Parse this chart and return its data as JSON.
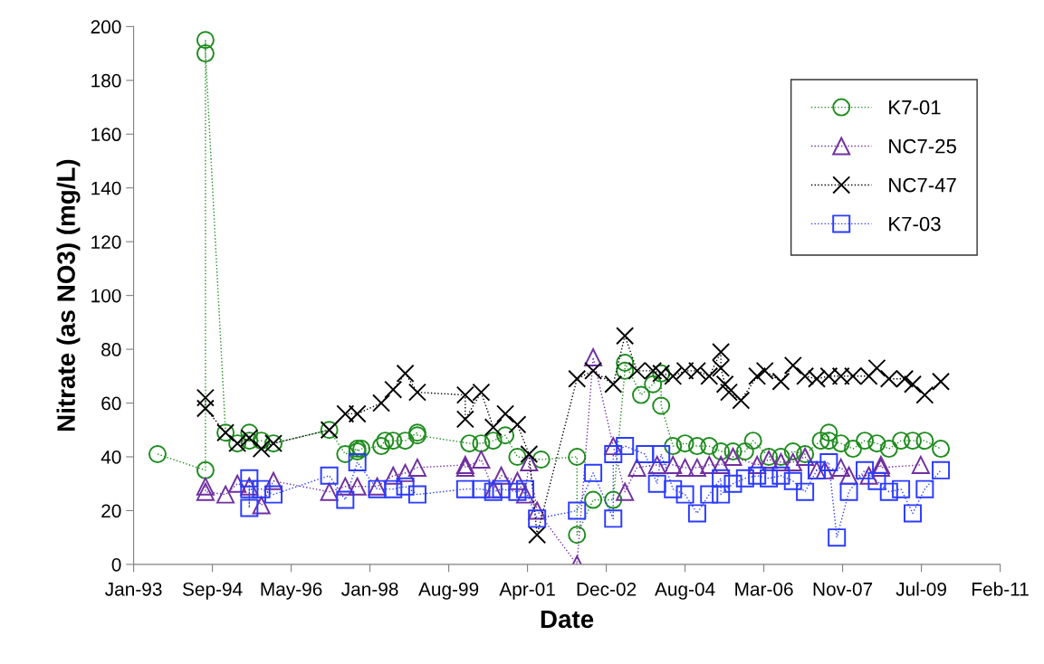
{
  "chart_data": {
    "type": "line",
    "xlabel": "Date",
    "ylabel": "Nitrate (as NO3) (mg/L)",
    "xlim": [
      "1993-01-31",
      "2011-02-26"
    ],
    "ylim": [
      0,
      200
    ],
    "yticks": [
      0,
      20,
      40,
      60,
      80,
      100,
      120,
      140,
      160,
      180,
      200
    ],
    "xticks": [
      {
        "value": "1993-01-31",
        "label": "Jan-93"
      },
      {
        "value": "1994-09-23",
        "label": "Sep-94"
      },
      {
        "value": "1996-05-15",
        "label": "May-96"
      },
      {
        "value": "1998-01-05",
        "label": "Jan-98"
      },
      {
        "value": "1999-08-28",
        "label": "Aug-99"
      },
      {
        "value": "2001-04-19",
        "label": "Apr-01"
      },
      {
        "value": "2002-12-10",
        "label": "Dec-02"
      },
      {
        "value": "2004-08-01",
        "label": "Aug-04"
      },
      {
        "value": "2006-03-24",
        "label": "Mar-06"
      },
      {
        "value": "2007-11-14",
        "label": "Nov-07"
      },
      {
        "value": "2009-07-06",
        "label": "Jul-09"
      },
      {
        "value": "2011-02-26",
        "label": "Feb-11"
      }
    ],
    "grid": false,
    "legend": "top right",
    "line_style": "dotted",
    "series": [
      {
        "name": "K7-01",
        "color": "#1e8c1e",
        "marker": "circle",
        "x": [
          "1993-08",
          "1994-08",
          "1994-08",
          "1994-08",
          "1995-01",
          "1995-04",
          "1995-07",
          "1995-07",
          "1995-10",
          "1996-01",
          "1997-03",
          "1997-07",
          "1997-10",
          "1997-10",
          "1997-11",
          "1998-04",
          "1998-05",
          "1998-07",
          "1998-10",
          "1999-01",
          "1999-01",
          "2000-02",
          "2000-05",
          "2000-08",
          "2000-11",
          "2001-02",
          "2001-08",
          "2002-05",
          "2002-05",
          "2002-09",
          "2003-02",
          "2003-05",
          "2003-05",
          "2003-09",
          "2003-12",
          "2004-02",
          "2004-02",
          "2004-05",
          "2004-08",
          "2004-11",
          "2005-02",
          "2005-05",
          "2005-08",
          "2005-11",
          "2006-01",
          "2006-05",
          "2006-08",
          "2006-11",
          "2007-02",
          "2007-06",
          "2007-08",
          "2007-08",
          "2007-11",
          "2008-02",
          "2008-05",
          "2008-08",
          "2008-11",
          "2009-02",
          "2009-05",
          "2009-08",
          "2009-12"
        ],
        "values": [
          41,
          35,
          195,
          190,
          49,
          45,
          49,
          46,
          46,
          45,
          50,
          41,
          43,
          42,
          43,
          44,
          46,
          46,
          46,
          49,
          48,
          45,
          45,
          46,
          48,
          40,
          39,
          40,
          11,
          24,
          24,
          72,
          75,
          63,
          67,
          71,
          59,
          44,
          45,
          44,
          44,
          42,
          42,
          42,
          46,
          40,
          40,
          42,
          41,
          46,
          49,
          46,
          45,
          43,
          46,
          45,
          43,
          46,
          46,
          46,
          43
        ]
      },
      {
        "name": "NC7-25",
        "color": "#7030a0",
        "marker": "triangle",
        "x": [
          "1994-08",
          "1994-08",
          "1995-01",
          "1995-04",
          "1995-07",
          "1995-10",
          "1996-01",
          "1997-03",
          "1997-07",
          "1997-10",
          "1998-03",
          "1998-07",
          "1998-10",
          "1999-01",
          "2000-01",
          "2000-01",
          "2000-05",
          "2000-08",
          "2000-10",
          "2001-02",
          "2001-04",
          "2001-05",
          "2001-07",
          "2002-05",
          "2002-09",
          "2003-02",
          "2003-05",
          "2003-08",
          "2004-01",
          "2004-05",
          "2004-08",
          "2004-11",
          "2005-02",
          "2005-05",
          "2005-08",
          "2006-02",
          "2006-05",
          "2006-08",
          "2006-11",
          "2007-02",
          "2007-05",
          "2007-07",
          "2007-11",
          "2008-01",
          "2008-06",
          "2008-09",
          "2008-09",
          "2009-07"
        ],
        "values": [
          29,
          27,
          26,
          30,
          29,
          22,
          31,
          27,
          29,
          29,
          29,
          33,
          34,
          36,
          37,
          36,
          39,
          28,
          33,
          31,
          26,
          38,
          20,
          0,
          77,
          44,
          27,
          36,
          37,
          37,
          36,
          36,
          37,
          37,
          40,
          37,
          39,
          38,
          38,
          40,
          35,
          35,
          36,
          33,
          33,
          37,
          36,
          37
        ]
      },
      {
        "name": "NC7-47",
        "color": "#000000",
        "marker": "cross",
        "x": [
          "1994-08",
          "1994-08",
          "1995-01",
          "1995-04",
          "1995-07",
          "1995-10",
          "1996-01",
          "1997-03",
          "1997-07",
          "1997-10",
          "1998-04",
          "1998-07",
          "1998-10",
          "1999-01",
          "2000-01",
          "2000-01",
          "2000-05",
          "2000-08",
          "2000-11",
          "2001-02",
          "2001-05",
          "2001-07",
          "2002-05",
          "2002-09",
          "2003-02",
          "2003-05",
          "2003-08",
          "2003-12",
          "2004-02",
          "2004-05",
          "2004-08",
          "2004-11",
          "2005-02",
          "2005-05",
          "2005-05",
          "2005-06",
          "2005-07",
          "2005-10",
          "2006-02",
          "2006-04",
          "2006-08",
          "2006-11",
          "2007-02",
          "2007-05",
          "2007-08",
          "2007-11",
          "2008-02",
          "2008-06",
          "2008-08",
          "2008-11",
          "2009-03",
          "2009-05",
          "2009-08",
          "2009-12"
        ],
        "values": [
          62,
          58,
          49,
          45,
          47,
          43,
          45,
          50,
          56,
          56,
          60,
          65,
          71,
          64,
          63,
          54,
          64,
          51,
          56,
          52,
          41,
          11,
          69,
          72,
          67,
          85,
          72,
          72,
          71,
          70,
          72,
          72,
          70,
          79,
          73,
          67,
          64,
          61,
          70,
          72,
          68,
          74,
          70,
          69,
          70,
          70,
          70,
          70,
          73,
          69,
          69,
          67,
          63,
          68
        ]
      },
      {
        "name": "K7-03",
        "color": "#2a3bff",
        "marker": "square",
        "x": [
          "1995-07",
          "1995-07",
          "1995-07",
          "1995-10",
          "1996-01",
          "1997-03",
          "1997-07",
          "1997-10",
          "1998-03",
          "1998-07",
          "1998-10",
          "1999-01",
          "2000-01",
          "2000-05",
          "2000-08",
          "2000-10",
          "2001-02",
          "2001-04",
          "2001-07",
          "2002-05",
          "2002-09",
          "2003-02",
          "2003-02",
          "2003-05",
          "2003-10",
          "2004-01",
          "2004-02",
          "2004-05",
          "2004-08",
          "2004-11",
          "2005-02",
          "2005-05",
          "2005-05",
          "2005-08",
          "2005-11",
          "2006-02",
          "2006-05",
          "2006-08",
          "2006-11",
          "2007-02",
          "2007-05",
          "2007-08",
          "2007-10",
          "2008-01",
          "2008-05",
          "2008-08",
          "2008-11",
          "2009-02",
          "2009-05",
          "2009-08",
          "2009-12"
        ],
        "values": [
          32,
          21,
          28,
          28,
          26,
          33,
          24,
          38,
          28,
          28,
          29,
          26,
          28,
          28,
          27,
          28,
          27,
          28,
          17,
          20,
          34,
          17,
          41,
          44,
          41,
          30,
          41,
          28,
          26,
          19,
          26,
          32,
          26,
          30,
          32,
          33,
          32,
          33,
          31,
          27,
          35,
          38,
          10,
          27,
          35,
          31,
          27,
          28,
          19,
          28,
          35
        ]
      }
    ]
  }
}
